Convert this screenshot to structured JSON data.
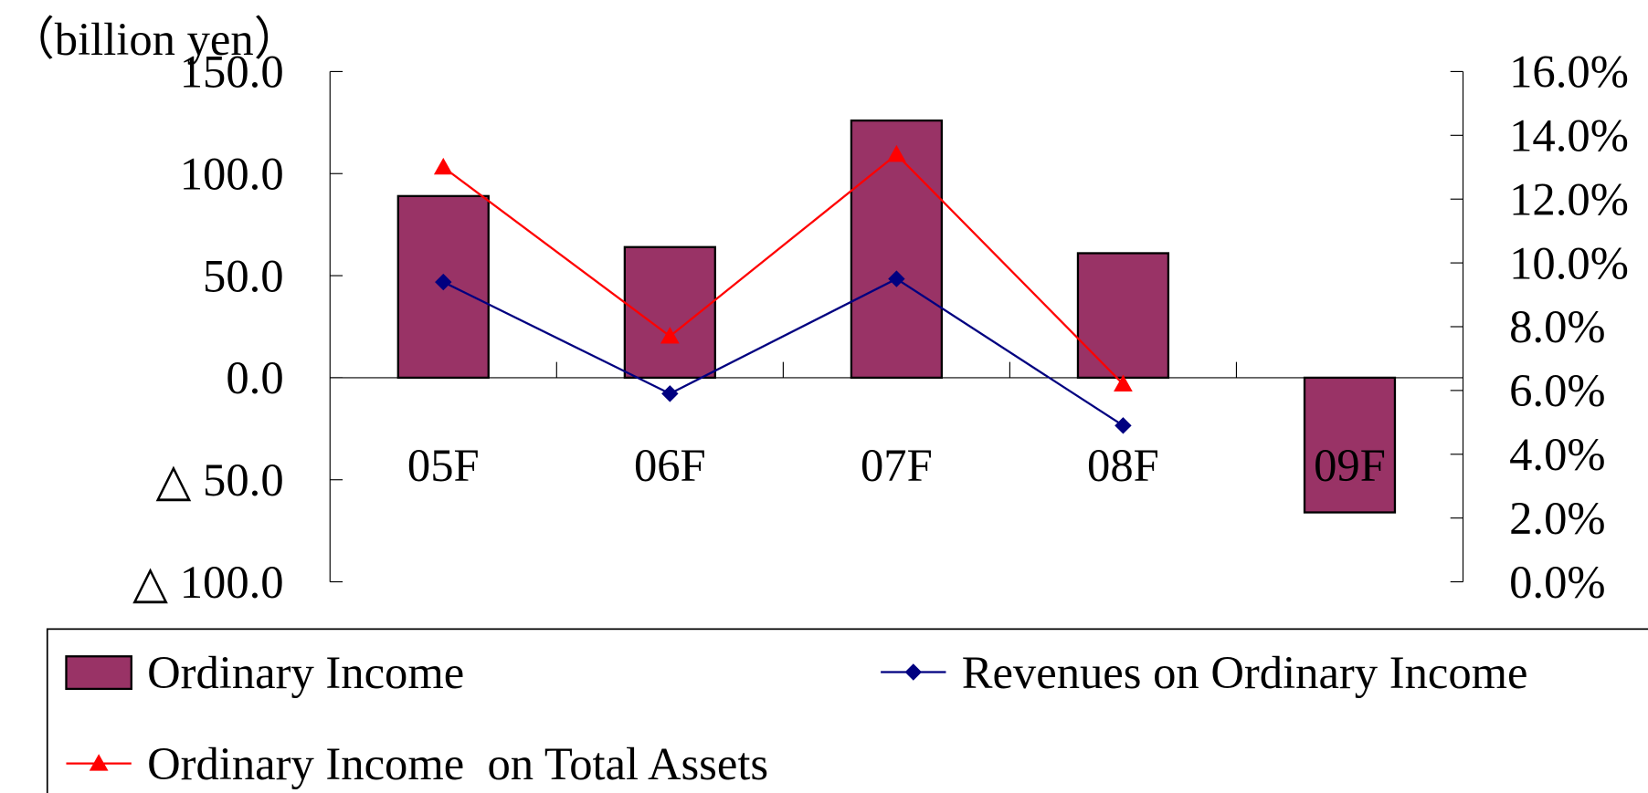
{
  "chart_data": {
    "type": "bar",
    "unit_label": "（billion yen）",
    "categories": [
      "05F",
      "06F",
      "07F",
      "08F",
      "09F"
    ],
    "series": [
      {
        "name": "Ordinary Income",
        "type": "bar",
        "color": "#993366",
        "values": [
          89,
          64,
          126,
          61,
          -66
        ]
      },
      {
        "name": "Revenues on Ordinary Income",
        "type": "line",
        "marker": "diamond",
        "axis": "y2",
        "color": "#000080",
        "values": [
          9.4,
          5.9,
          9.5,
          4.9,
          null
        ]
      },
      {
        "name": "Ordinary Income  on Total Assets",
        "type": "line",
        "marker": "triangle",
        "axis": "y2",
        "color": "#ff0000",
        "values": [
          13.0,
          7.7,
          13.4,
          6.2,
          null
        ]
      }
    ],
    "ylim": [
      -100,
      150
    ],
    "yticks": [
      {
        "value": 150,
        "label": "150.0"
      },
      {
        "value": 100,
        "label": "100.0"
      },
      {
        "value": 50,
        "label": "50.0"
      },
      {
        "value": 0,
        "label": "0.0"
      },
      {
        "value": -50,
        "label": "△ 50.0"
      },
      {
        "value": -100,
        "label": "△ 100.0"
      }
    ],
    "y2lim": [
      0,
      16
    ],
    "y2ticks": [
      {
        "value": 16,
        "label": "16.0%"
      },
      {
        "value": 14,
        "label": "14.0%"
      },
      {
        "value": 12,
        "label": "12.0%"
      },
      {
        "value": 10,
        "label": "10.0%"
      },
      {
        "value": 8,
        "label": "8.0%"
      },
      {
        "value": 6,
        "label": "6.0%"
      },
      {
        "value": 4,
        "label": "4.0%"
      },
      {
        "value": 2,
        "label": "2.0%"
      },
      {
        "value": 0,
        "label": "0.0%"
      }
    ],
    "legend": "bottom"
  }
}
